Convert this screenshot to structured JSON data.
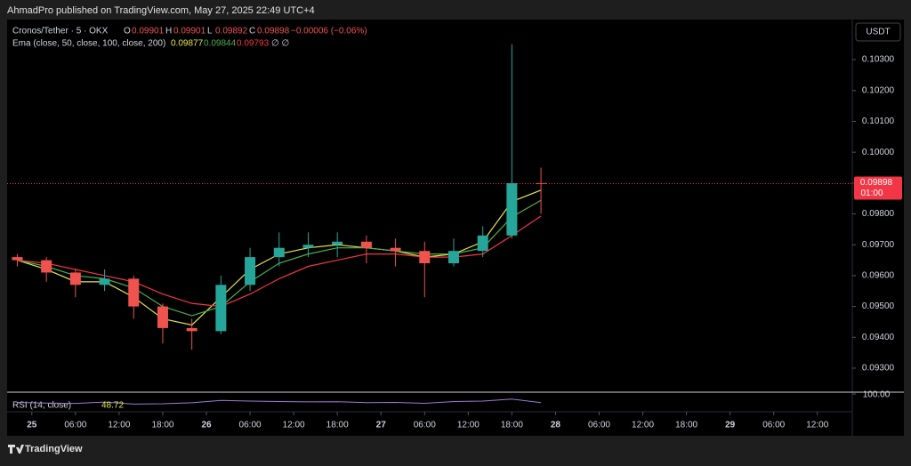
{
  "header": {
    "text": "AhmadPro published on TradingView.com, May 27, 2025 22:49 UTC+4"
  },
  "chart_data": {
    "type": "candlestick",
    "symbol": "Cronos/Tether · 5 · OKX",
    "ohlc_legend": [
      {
        "key": "O",
        "value": "0.09901"
      },
      {
        "key": "H",
        "value": "0.09901"
      },
      {
        "key": "L",
        "value": "0.09892"
      },
      {
        "key": "C",
        "value": "0.09898"
      }
    ],
    "change": "−0.00006 (−0.06%)",
    "x": [
      -2,
      2,
      6,
      10,
      14,
      18,
      22,
      26,
      30,
      34,
      38,
      42,
      46,
      50,
      54,
      58,
      62,
      66,
      70
    ],
    "open": [
      0.0966,
      0.0965,
      0.0961,
      0.0957,
      0.0959,
      0.095,
      0.0943,
      0.0942,
      0.0957,
      0.0966,
      0.0969,
      0.097,
      0.0971,
      0.0969,
      0.0968,
      0.0964,
      0.0968,
      0.0973,
      0.099
    ],
    "high": [
      0.0967,
      0.0966,
      0.0962,
      0.0962,
      0.096,
      0.0951,
      0.0946,
      0.096,
      0.0969,
      0.0974,
      0.0974,
      0.0974,
      0.0973,
      0.0972,
      0.0971,
      0.0972,
      0.0976,
      0.1035,
      0.0995
    ],
    "low": [
      0.0963,
      0.0958,
      0.0953,
      0.0955,
      0.0946,
      0.0938,
      0.0936,
      0.0941,
      0.0955,
      0.0963,
      0.0966,
      0.0966,
      0.0964,
      0.0963,
      0.0953,
      0.0963,
      0.0966,
      0.0972,
      0.098
    ],
    "close": [
      0.0965,
      0.0961,
      0.0957,
      0.0959,
      0.095,
      0.0943,
      0.0942,
      0.0957,
      0.0966,
      0.0969,
      0.097,
      0.0971,
      0.0969,
      0.0968,
      0.0964,
      0.0968,
      0.0973,
      0.099,
      0.09898
    ],
    "up_color": "#26a69a",
    "down_color": "#ef5350",
    "ema_title": "Ema (close, 50, close, 100, close, 200)",
    "ema_suffix": "∅ ∅",
    "series": [
      {
        "color": "#e6e64c",
        "value_label": "0.09877",
        "values": [
          0.0965,
          0.0962,
          0.0958,
          0.0958,
          0.0953,
          0.0946,
          0.0944,
          0.0953,
          0.0962,
          0.0967,
          0.0969,
          0.097,
          0.0969,
          0.0968,
          0.0966,
          0.0967,
          0.0971,
          0.0984,
          0.09877
        ]
      },
      {
        "color": "#4caf50",
        "value_label": "0.09844",
        "values": [
          0.0965,
          0.0963,
          0.096,
          0.0959,
          0.0956,
          0.095,
          0.0947,
          0.095,
          0.0958,
          0.0964,
          0.0967,
          0.0969,
          0.0969,
          0.0968,
          0.0967,
          0.0967,
          0.0969,
          0.0979,
          0.09844
        ]
      },
      {
        "color": "#f23645",
        "value_label": "0.09793",
        "values": [
          0.0965,
          0.0964,
          0.0962,
          0.096,
          0.0958,
          0.0954,
          0.0951,
          0.095,
          0.0954,
          0.0959,
          0.0963,
          0.0965,
          0.0967,
          0.0967,
          0.0966,
          0.0966,
          0.0967,
          0.0973,
          0.09793
        ]
      }
    ],
    "xlim": [
      -3.4,
      112.8
    ],
    "xticks": [
      {
        "value": 0,
        "label": "25"
      },
      {
        "value": 6,
        "label": "06:00"
      },
      {
        "value": 12,
        "label": "12:00"
      },
      {
        "value": 18,
        "label": "18:00"
      },
      {
        "value": 24,
        "label": "26"
      },
      {
        "value": 30,
        "label": "06:00"
      },
      {
        "value": 36,
        "label": "12:00"
      },
      {
        "value": 42,
        "label": "18:00"
      },
      {
        "value": 48,
        "label": "27"
      },
      {
        "value": 54,
        "label": "06:00"
      },
      {
        "value": 60,
        "label": "12:00"
      },
      {
        "value": 66,
        "label": "18:00"
      },
      {
        "value": 72,
        "label": "28"
      },
      {
        "value": 78,
        "label": "06:00"
      },
      {
        "value": 84,
        "label": "12:00"
      },
      {
        "value": 90,
        "label": "18:00"
      },
      {
        "value": 96,
        "label": "29"
      },
      {
        "value": 102,
        "label": "06:00"
      },
      {
        "value": 108,
        "label": "12:00"
      }
    ],
    "ylim": [
      0.09225,
      0.1043
    ],
    "yticks": [
      {
        "value": 0.093,
        "label": "0.09300"
      },
      {
        "value": 0.094,
        "label": "0.09400"
      },
      {
        "value": 0.095,
        "label": "0.09500"
      },
      {
        "value": 0.096,
        "label": "0.09600"
      },
      {
        "value": 0.097,
        "label": "0.09700"
      },
      {
        "value": 0.098,
        "label": "0.09800"
      },
      {
        "value": 0.099,
        "label": "0.09900"
      },
      {
        "value": 0.1,
        "label": "0.10000"
      },
      {
        "value": 0.101,
        "label": "0.10100"
      },
      {
        "value": 0.102,
        "label": "0.10200"
      },
      {
        "value": 0.103,
        "label": "0.10300"
      }
    ],
    "y_axis_label": "USDT",
    "last_price": {
      "value": 0.09898,
      "label": "0.09898",
      "countdown": "01:00",
      "color": "#f23645"
    },
    "rsi": {
      "title": "RSI (14, close)",
      "value_label": "48.72",
      "color": "#9c7bd6",
      "ylim": [
        0,
        100
      ],
      "yticks": [
        {
          "value": 100,
          "label": "100.00"
        }
      ],
      "values": [
        50,
        46,
        44,
        52,
        40,
        42,
        48,
        62,
        58,
        55,
        53,
        54,
        49,
        50,
        45,
        55,
        58,
        70,
        48.72
      ]
    }
  },
  "footer": {
    "brand": "TradingView"
  }
}
